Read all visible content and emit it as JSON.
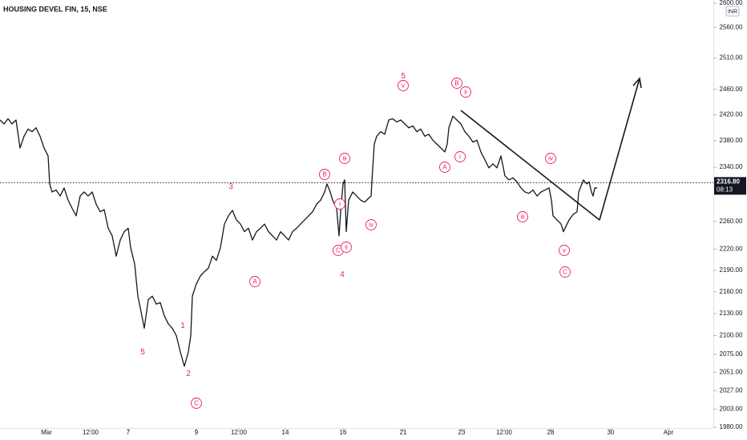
{
  "chart_data": {
    "type": "line",
    "title": "HOUSING DEVEL FIN, 15, NSE",
    "currency": "INR",
    "color": "#131722",
    "annotation_color": "#e91e63",
    "log_scale": true,
    "x": [
      0,
      1,
      2,
      3,
      4,
      5,
      6,
      7,
      8,
      9,
      10,
      11,
      12,
      12.4,
      13,
      14,
      15,
      16,
      17,
      18,
      19,
      20,
      21,
      22,
      23,
      24,
      25,
      26,
      27,
      28,
      29,
      30,
      31,
      32,
      32.6,
      33.6,
      34.4,
      35,
      36,
      37,
      38,
      39,
      40,
      41,
      42,
      43,
      44,
      45,
      46,
      47,
      47.6,
      48,
      49,
      50,
      51,
      52,
      53,
      54,
      55,
      56,
      57,
      58,
      59,
      60,
      61,
      62,
      63,
      64,
      65,
      66,
      67,
      68,
      69,
      70,
      71,
      72,
      73,
      74,
      75,
      76,
      77,
      78,
      79,
      80,
      81,
      81.6,
      82.4,
      83,
      84,
      84.6,
      85,
      85.6,
      86,
      86.4,
      87,
      88,
      89,
      90,
      91,
      92,
      92.6,
      93,
      93.4,
      94,
      95,
      96,
      97,
      98,
      99,
      100,
      101,
      102,
      103,
      104,
      105,
      106,
      107,
      108,
      109,
      110,
      111,
      111.6,
      112,
      113,
      114,
      115,
      116,
      117,
      118,
      119,
      120,
      121,
      122,
      123,
      124,
      125,
      126,
      127,
      128,
      129,
      130,
      131,
      132,
      133,
      134,
      135,
      136,
      137,
      137.6,
      138,
      139,
      140,
      140.6,
      141,
      142,
      143,
      144,
      144.4,
      145,
      145.6,
      146.4,
      147,
      147.6,
      148,
      148.4,
      149
    ],
    "values": [
      2412,
      2406,
      2414,
      2406,
      2412,
      2369,
      2387,
      2398,
      2394,
      2400,
      2387,
      2369,
      2357,
      2315,
      2303,
      2306,
      2297,
      2309,
      2291,
      2279,
      2268,
      2297,
      2303,
      2297,
      2303,
      2285,
      2274,
      2277,
      2250,
      2239,
      2210,
      2233,
      2245,
      2250,
      2222,
      2199,
      2154,
      2138,
      2110,
      2149,
      2154,
      2143,
      2145,
      2127,
      2116,
      2110,
      2100,
      2078,
      2059,
      2078,
      2100,
      2154,
      2171,
      2182,
      2188,
      2193,
      2210,
      2204,
      2222,
      2256,
      2268,
      2276,
      2262,
      2256,
      2245,
      2250,
      2233,
      2245,
      2250,
      2256,
      2245,
      2239,
      2233,
      2245,
      2239,
      2233,
      2245,
      2250,
      2256,
      2262,
      2268,
      2274,
      2285,
      2291,
      2303,
      2315,
      2303,
      2291,
      2279,
      2239,
      2274,
      2315,
      2321,
      2245,
      2291,
      2303,
      2297,
      2291,
      2288,
      2294,
      2297,
      2339,
      2375,
      2387,
      2394,
      2390,
      2412,
      2414,
      2409,
      2412,
      2406,
      2400,
      2403,
      2394,
      2398,
      2387,
      2390,
      2381,
      2375,
      2369,
      2363,
      2375,
      2400,
      2418,
      2412,
      2406,
      2394,
      2387,
      2378,
      2381,
      2363,
      2351,
      2339,
      2345,
      2339,
      2357,
      2327,
      2321,
      2324,
      2318,
      2309,
      2303,
      2301,
      2306,
      2297,
      2303,
      2306,
      2309,
      2291,
      2268,
      2262,
      2256,
      2245,
      2250,
      2262,
      2270,
      2274,
      2303,
      2312,
      2321,
      2315,
      2318,
      2303,
      2297,
      2309,
      2309
    ],
    "xlim": [
      0,
      178
    ],
    "xticks": [
      {
        "value": 11.6,
        "label": "Mar"
      },
      {
        "value": 22.6,
        "label": "12:00"
      },
      {
        "value": 32,
        "label": "7"
      },
      {
        "value": 49,
        "label": "9"
      },
      {
        "value": 59.6,
        "label": "12:00"
      },
      {
        "value": 71.2,
        "label": "14"
      },
      {
        "value": 85.6,
        "label": "16"
      },
      {
        "value": 100.6,
        "label": "21"
      },
      {
        "value": 115.2,
        "label": "23"
      },
      {
        "value": 125.8,
        "label": "12:00"
      },
      {
        "value": 137.4,
        "label": "28"
      },
      {
        "value": 152.4,
        "label": "30"
      },
      {
        "value": 166.8,
        "label": "Apr"
      }
    ],
    "ylim": [
      1980,
      2600
    ],
    "yticks": [
      {
        "value": 1980,
        "label": "1980.00"
      },
      {
        "value": 2003,
        "label": "2003.00"
      },
      {
        "value": 2027,
        "label": "2027.00"
      },
      {
        "value": 2051,
        "label": "2051.00"
      },
      {
        "value": 2075,
        "label": "2075.00"
      },
      {
        "value": 2100,
        "label": "2100.00"
      },
      {
        "value": 2130,
        "label": "2130.00"
      },
      {
        "value": 2160,
        "label": "2160.00"
      },
      {
        "value": 2190,
        "label": "2190.00"
      },
      {
        "value": 2220,
        "label": "2220.00"
      },
      {
        "value": 2260,
        "label": "2260.00"
      },
      {
        "value": 2340,
        "label": "2340.00"
      },
      {
        "value": 2380,
        "label": "2380.00"
      },
      {
        "value": 2420,
        "label": "2420.00"
      },
      {
        "value": 2460,
        "label": "2460.00"
      },
      {
        "value": 2510,
        "label": "2510.00"
      },
      {
        "value": 2560,
        "label": "2560.00"
      },
      {
        "value": 2600,
        "label": "2600.00"
      }
    ],
    "last_price": {
      "value": 2316.8,
      "label": "2316.80"
    },
    "countdown": "08:13",
    "annotations": [
      "5",
      "2",
      "1",
      "C",
      "3",
      "A",
      "4",
      "B",
      "C",
      "i",
      "ii",
      "iii",
      "iv",
      "5",
      "v",
      "B",
      "ii",
      "A",
      "i",
      "iii",
      "iv",
      "v",
      "C"
    ]
  }
}
